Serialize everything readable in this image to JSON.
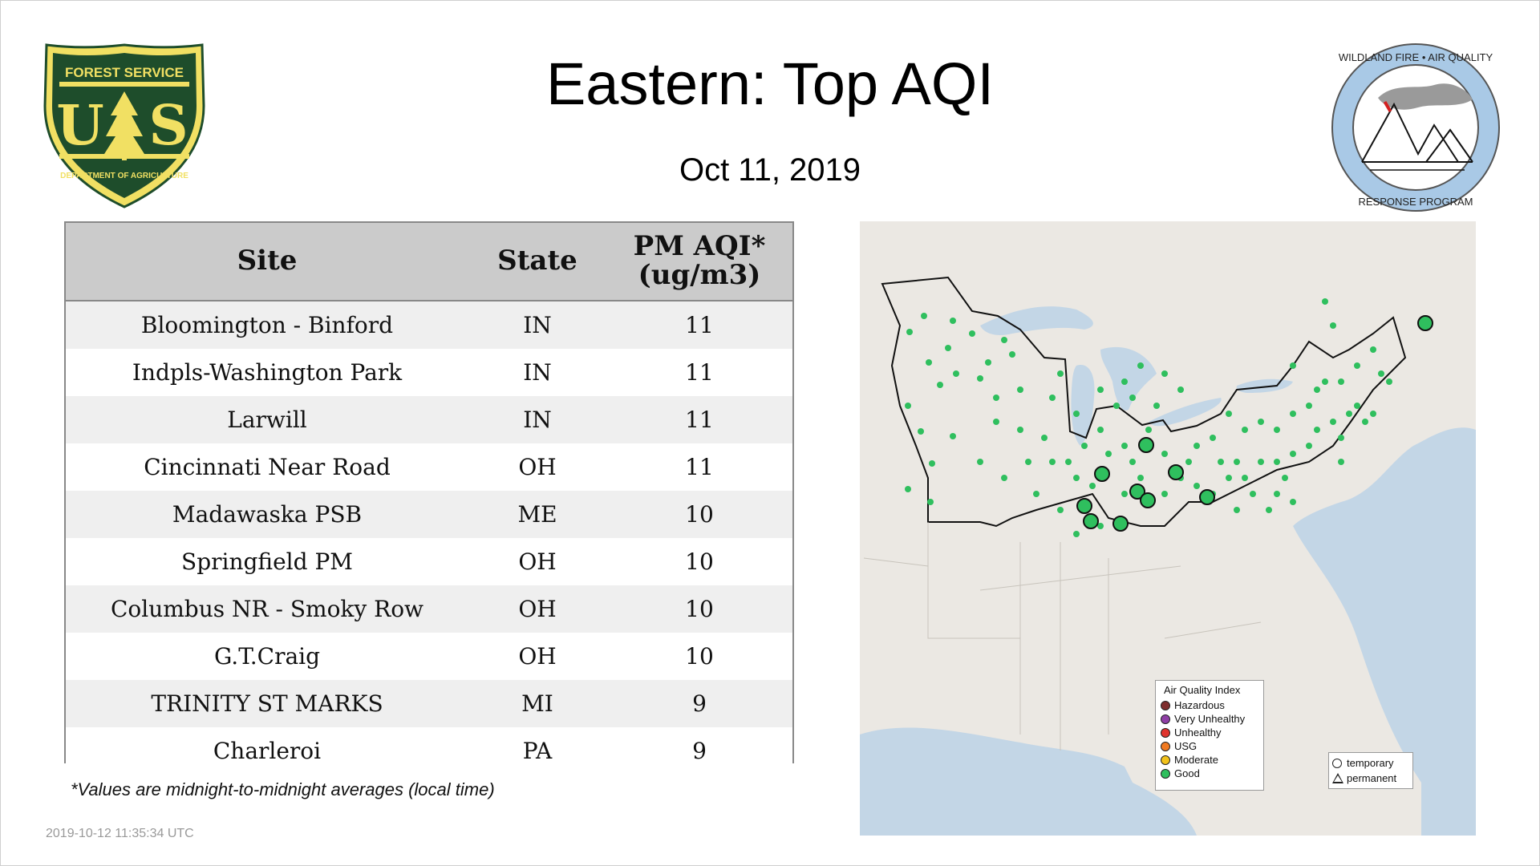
{
  "header": {
    "title": "Eastern: Top AQI",
    "date": "Oct 11, 2019"
  },
  "logos": {
    "left": {
      "top_text": "FOREST SERVICE",
      "letters": "U S",
      "bottom_text": "DEPARTMENT OF AGRICULTURE",
      "icon": "usfs-shield-icon",
      "color": "#1e4d2b",
      "accent": "#f1e063"
    },
    "right": {
      "top_text": "WILDLAND FIRE • AIR QUALITY",
      "bottom_text": "RESPONSE PROGRAM",
      "icon": "wfaqrp-seal-icon",
      "color": "#a9c9e6"
    }
  },
  "table": {
    "headers": {
      "site": "Site",
      "state": "State",
      "pm_line1": "PM AQI*",
      "pm_line2": "(ug/m3)"
    },
    "rows": [
      {
        "site": "Bloomington - Binford",
        "state": "IN",
        "value": "11"
      },
      {
        "site": "Indpls-Washington Park",
        "state": "IN",
        "value": "11"
      },
      {
        "site": "Larwill",
        "state": "IN",
        "value": "11"
      },
      {
        "site": "Cincinnati Near Road",
        "state": "OH",
        "value": "11"
      },
      {
        "site": "Madawaska PSB",
        "state": "ME",
        "value": "10"
      },
      {
        "site": "Springfield PM",
        "state": "OH",
        "value": "10"
      },
      {
        "site": "Columbus NR - Smoky Row",
        "state": "OH",
        "value": "10"
      },
      {
        "site": "G.T.Craig",
        "state": "OH",
        "value": "10"
      },
      {
        "site": "TRINITY ST MARKS",
        "state": "MI",
        "value": "9"
      },
      {
        "site": "Charleroi",
        "state": "PA",
        "value": "9"
      }
    ]
  },
  "footnote": "*Values are midnight-to-midnight averages (local time)",
  "timestamp": "2019-10-12 11:35:34 UTC",
  "map": {
    "legend": {
      "title": "Air Quality Index",
      "items": [
        {
          "label": "Hazardous",
          "color": "#7e2d2d"
        },
        {
          "label": "Very Unhealthy",
          "color": "#8f3fa6"
        },
        {
          "label": "Unhealthy",
          "color": "#e0352f"
        },
        {
          "label": "USG",
          "color": "#f07a22"
        },
        {
          "label": "Moderate",
          "color": "#f2c21b"
        },
        {
          "label": "Good",
          "color": "#2fbf5e"
        }
      ]
    },
    "type_legend": {
      "temporary": "temporary",
      "permanent": "permanent"
    },
    "colors": {
      "water": "#c3d6e6",
      "land": "#ebe8e3",
      "good": "#2fbf5e"
    }
  }
}
